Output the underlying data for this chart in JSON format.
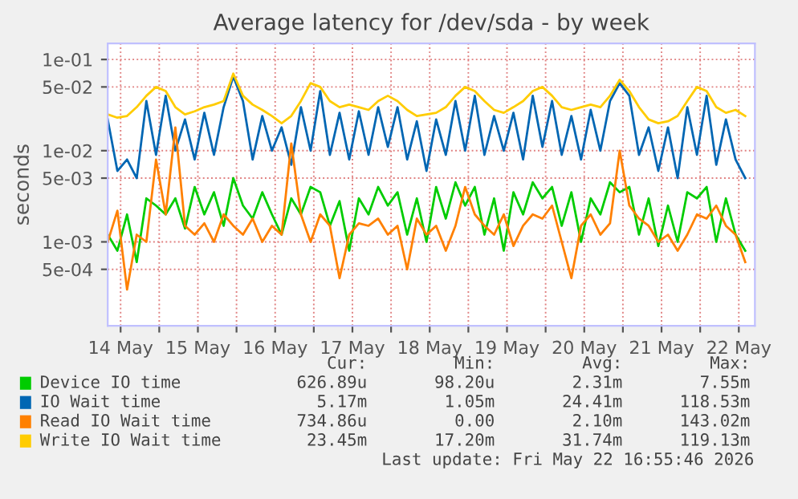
{
  "chart_data": {
    "type": "line",
    "title": "Average latency for /dev/sda - by week",
    "ylabel": "seconds",
    "log": "y",
    "grid": true,
    "legend": "bottom",
    "marker": "none",
    "line_style": "solid",
    "xlim": [
      "2026-05-14T08:00",
      "2026-05-22T17:00"
    ],
    "xticks": [
      {
        "value": "2026-05-14T12:00",
        "label": "14 May"
      },
      {
        "value": "2026-05-15T00:00",
        "label": null
      },
      {
        "value": "2026-05-15T12:00",
        "label": "15 May"
      },
      {
        "value": "2026-05-16T00:00",
        "label": null
      },
      {
        "value": "2026-05-16T12:00",
        "label": "16 May"
      },
      {
        "value": "2026-05-17T00:00",
        "label": null
      },
      {
        "value": "2026-05-17T12:00",
        "label": "17 May"
      },
      {
        "value": "2026-05-18T00:00",
        "label": null
      },
      {
        "value": "2026-05-18T12:00",
        "label": "18 May"
      },
      {
        "value": "2026-05-19T00:00",
        "label": null
      },
      {
        "value": "2026-05-19T12:00",
        "label": "19 May"
      },
      {
        "value": "2026-05-20T00:00",
        "label": null
      },
      {
        "value": "2026-05-20T12:00",
        "label": "20 May"
      },
      {
        "value": "2026-05-21T00:00",
        "label": null
      },
      {
        "value": "2026-05-21T12:00",
        "label": "21 May"
      },
      {
        "value": "2026-05-22T00:00",
        "label": null
      },
      {
        "value": "2026-05-22T12:00",
        "label": "22 May"
      }
    ],
    "ylim": [
      0.00012,
      0.15
    ],
    "yticks": [
      {
        "value": 0.1,
        "label": "1e-01"
      },
      {
        "value": 0.05,
        "label": "5e-02"
      },
      {
        "value": 0.01,
        "label": "1e-02"
      },
      {
        "value": 0.005,
        "label": "5e-03"
      },
      {
        "value": 0.001,
        "label": "1e-03"
      },
      {
        "value": 0.0005,
        "label": "5e-04"
      }
    ],
    "x": [
      "2026-05-14T08:00",
      "2026-05-14T11:00",
      "2026-05-14T14:00",
      "2026-05-14T17:00",
      "2026-05-14T20:00",
      "2026-05-14T23:00",
      "2026-05-15T02:00",
      "2026-05-15T05:00",
      "2026-05-15T08:00",
      "2026-05-15T11:00",
      "2026-05-15T14:00",
      "2026-05-15T17:00",
      "2026-05-15T20:00",
      "2026-05-15T23:00",
      "2026-05-16T02:00",
      "2026-05-16T05:00",
      "2026-05-16T08:00",
      "2026-05-16T11:00",
      "2026-05-16T14:00",
      "2026-05-16T17:00",
      "2026-05-16T20:00",
      "2026-05-16T23:00",
      "2026-05-17T02:00",
      "2026-05-17T05:00",
      "2026-05-17T08:00",
      "2026-05-17T11:00",
      "2026-05-17T14:00",
      "2026-05-17T17:00",
      "2026-05-17T20:00",
      "2026-05-17T23:00",
      "2026-05-18T02:00",
      "2026-05-18T05:00",
      "2026-05-18T08:00",
      "2026-05-18T11:00",
      "2026-05-18T14:00",
      "2026-05-18T17:00",
      "2026-05-18T20:00",
      "2026-05-18T23:00",
      "2026-05-19T02:00",
      "2026-05-19T05:00",
      "2026-05-19T08:00",
      "2026-05-19T11:00",
      "2026-05-19T14:00",
      "2026-05-19T17:00",
      "2026-05-19T20:00",
      "2026-05-19T23:00",
      "2026-05-20T02:00",
      "2026-05-20T05:00",
      "2026-05-20T08:00",
      "2026-05-20T11:00",
      "2026-05-20T14:00",
      "2026-05-20T17:00",
      "2026-05-20T20:00",
      "2026-05-20T23:00",
      "2026-05-21T02:00",
      "2026-05-21T05:00",
      "2026-05-21T08:00",
      "2026-05-21T11:00",
      "2026-05-21T14:00",
      "2026-05-21T17:00",
      "2026-05-21T20:00",
      "2026-05-21T23:00",
      "2026-05-22T02:00",
      "2026-05-22T05:00",
      "2026-05-22T08:00",
      "2026-05-22T11:00",
      "2026-05-22T14:00"
    ],
    "series": [
      {
        "name": "Device IO time",
        "color": "#00cc00",
        "values": [
          0.0012,
          0.0008,
          0.002,
          0.0006,
          0.003,
          0.0025,
          0.002,
          0.003,
          0.0014,
          0.004,
          0.002,
          0.0035,
          0.0015,
          0.005,
          0.0025,
          0.0018,
          0.0035,
          0.002,
          0.0012,
          0.003,
          0.002,
          0.004,
          0.0035,
          0.0015,
          0.0028,
          0.0008,
          0.003,
          0.002,
          0.004,
          0.0025,
          0.0035,
          0.0012,
          0.003,
          0.001,
          0.004,
          0.0018,
          0.0045,
          0.0025,
          0.004,
          0.0012,
          0.003,
          0.0008,
          0.0035,
          0.002,
          0.0045,
          0.003,
          0.004,
          0.0015,
          0.0035,
          0.001,
          0.003,
          0.002,
          0.0045,
          0.0035,
          0.004,
          0.0012,
          0.003,
          0.0009,
          0.0025,
          0.001,
          0.0035,
          0.003,
          0.004,
          0.001,
          0.003,
          0.0012,
          0.0008
        ]
      },
      {
        "name": "IO Wait time",
        "color": "#0066b3",
        "values": [
          0.022,
          0.006,
          0.008,
          0.005,
          0.035,
          0.009,
          0.04,
          0.01,
          0.022,
          0.008,
          0.026,
          0.009,
          0.03,
          0.065,
          0.035,
          0.008,
          0.024,
          0.01,
          0.018,
          0.007,
          0.03,
          0.01,
          0.045,
          0.009,
          0.026,
          0.008,
          0.027,
          0.009,
          0.03,
          0.011,
          0.03,
          0.008,
          0.021,
          0.006,
          0.022,
          0.009,
          0.035,
          0.01,
          0.04,
          0.009,
          0.024,
          0.01,
          0.026,
          0.008,
          0.04,
          0.011,
          0.035,
          0.009,
          0.024,
          0.008,
          0.028,
          0.01,
          0.035,
          0.055,
          0.04,
          0.009,
          0.018,
          0.006,
          0.018,
          0.005,
          0.03,
          0.009,
          0.04,
          0.007,
          0.022,
          0.008,
          0.005
        ]
      },
      {
        "name": "Read IO Wait time",
        "color": "#ff8000",
        "values": [
          0.001,
          0.0022,
          0.0003,
          0.0012,
          0.001,
          0.008,
          0.002,
          0.018,
          0.0015,
          0.0012,
          0.0016,
          0.001,
          0.002,
          0.0015,
          0.0012,
          0.0018,
          0.001,
          0.0015,
          0.0012,
          0.012,
          0.002,
          0.001,
          0.002,
          0.0015,
          0.0004,
          0.0012,
          0.0016,
          0.0015,
          0.0018,
          0.0012,
          0.0015,
          0.0005,
          0.0018,
          0.0012,
          0.0015,
          0.0008,
          0.0015,
          0.004,
          0.002,
          0.0015,
          0.0012,
          0.002,
          0.0009,
          0.0015,
          0.002,
          0.0018,
          0.0025,
          0.001,
          0.0004,
          0.0015,
          0.002,
          0.0012,
          0.0016,
          0.01,
          0.0025,
          0.0018,
          0.0015,
          0.001,
          0.0012,
          0.0008,
          0.0012,
          0.002,
          0.0018,
          0.0025,
          0.0015,
          0.0012,
          0.0006
        ]
      },
      {
        "name": "Write IO Wait time",
        "color": "#ffcc00",
        "values": [
          0.025,
          0.023,
          0.024,
          0.03,
          0.04,
          0.05,
          0.045,
          0.03,
          0.025,
          0.027,
          0.03,
          0.032,
          0.035,
          0.07,
          0.04,
          0.032,
          0.028,
          0.024,
          0.02,
          0.024,
          0.035,
          0.055,
          0.05,
          0.035,
          0.03,
          0.032,
          0.03,
          0.028,
          0.035,
          0.04,
          0.035,
          0.028,
          0.024,
          0.025,
          0.026,
          0.03,
          0.04,
          0.05,
          0.045,
          0.035,
          0.028,
          0.026,
          0.03,
          0.035,
          0.045,
          0.05,
          0.04,
          0.03,
          0.028,
          0.03,
          0.032,
          0.03,
          0.04,
          0.06,
          0.045,
          0.03,
          0.022,
          0.02,
          0.021,
          0.024,
          0.035,
          0.05,
          0.045,
          0.03,
          0.026,
          0.028,
          0.024
        ]
      }
    ],
    "annotations": [
      "Cur:",
      "Min:",
      "Avg:",
      "Max:",
      "626.89u",
      "98.20u",
      "2.31m",
      "7.55m",
      "5.17m",
      "1.05m",
      "24.41m",
      "118.53m",
      "734.86u",
      "0.00",
      "2.10m",
      "143.02m",
      "23.45m",
      "17.20m",
      "31.74m",
      "119.13m",
      "Last update: Fri May 22 16:55:46 2026"
    ]
  }
}
